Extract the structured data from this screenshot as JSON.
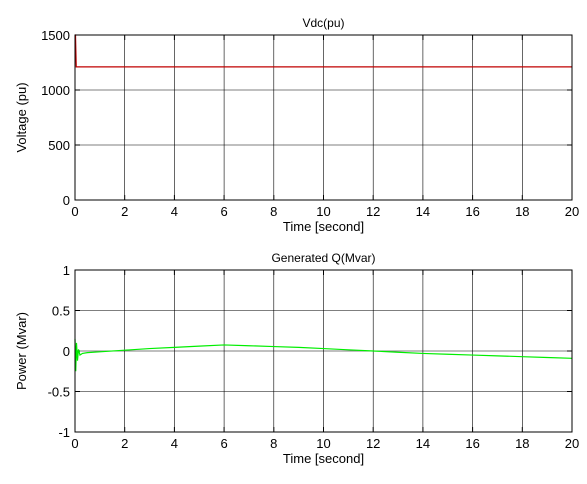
{
  "chart_data": [
    {
      "type": "line",
      "title": "Vdc(pu)",
      "xlabel": "Time [second]",
      "ylabel": "Voltage (pu)",
      "xlim": [
        0,
        20
      ],
      "ylim": [
        0,
        1500
      ],
      "xticks": [
        "0",
        "2",
        "4",
        "6",
        "8",
        "10",
        "12",
        "14",
        "16",
        "18",
        "20"
      ],
      "yticks": [
        "0",
        "500",
        "1000",
        "1500"
      ],
      "grid": true,
      "series": [
        {
          "color": "#c00000",
          "x": [
            0,
            0.02,
            0.05,
            0.08,
            20
          ],
          "y": [
            1500,
            1500,
            1210,
            1210,
            1210
          ]
        }
      ]
    },
    {
      "type": "line",
      "title": "Generated Q(Mvar)",
      "xlabel": "Time [second]",
      "ylabel": "Power (Mvar)",
      "xlim": [
        0,
        20
      ],
      "ylim": [
        -1,
        1
      ],
      "xticks": [
        "0",
        "2",
        "4",
        "6",
        "8",
        "10",
        "12",
        "14",
        "16",
        "18",
        "20"
      ],
      "yticks": [
        "-1",
        "-0.5",
        "0",
        "0.5",
        "1"
      ],
      "grid": true,
      "series": [
        {
          "color": "#00ee00",
          "x": [
            0,
            0.03,
            0.06,
            0.1,
            0.14,
            0.2,
            0.3,
            0.5,
            1,
            2,
            3,
            4,
            5,
            6,
            7,
            8,
            9,
            10,
            11,
            12,
            13,
            14,
            15,
            16,
            17,
            18,
            19,
            20
          ],
          "y": [
            0.15,
            -0.25,
            0.1,
            -0.12,
            0.02,
            -0.05,
            -0.03,
            -0.02,
            -0.01,
            0.01,
            0.03,
            0.045,
            0.06,
            0.075,
            0.065,
            0.055,
            0.045,
            0.03,
            0.015,
            0.0,
            -0.015,
            -0.03,
            -0.04,
            -0.05,
            -0.06,
            -0.07,
            -0.08,
            -0.09
          ]
        }
      ]
    }
  ]
}
